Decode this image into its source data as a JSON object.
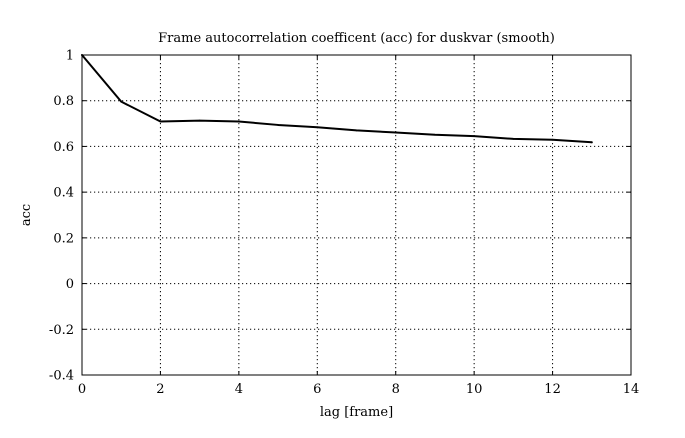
{
  "chart_data": {
    "type": "line",
    "title": "Frame autocorrelation coefficent (acc) for duskvar (smooth)",
    "xlabel": "lag [frame]",
    "ylabel": "acc",
    "xlim": [
      0,
      14
    ],
    "ylim": [
      -0.4,
      1
    ],
    "xticks": [
      0,
      2,
      4,
      6,
      8,
      10,
      12,
      14
    ],
    "yticks": [
      -0.4,
      -0.2,
      0,
      0.2,
      0.4,
      0.6,
      0.8,
      1
    ],
    "xtick_labels": [
      "0",
      "2",
      "4",
      "6",
      "8",
      "10",
      "12",
      "14"
    ],
    "ytick_labels": [
      "-0.4",
      "-0.2",
      "0",
      "0.2",
      "0.4",
      "0.6",
      "0.8",
      "1"
    ],
    "grid": true,
    "grid_style": "dotted",
    "series": [
      {
        "x": [
          0,
          1,
          2,
          3,
          4,
          5,
          6,
          7,
          8,
          9,
          10,
          11,
          12,
          13
        ],
        "y": [
          1.0,
          0.796,
          0.709,
          0.713,
          0.709,
          0.694,
          0.684,
          0.67,
          0.661,
          0.651,
          0.645,
          0.633,
          0.629,
          0.618
        ],
        "color": "#000000"
      }
    ]
  }
}
